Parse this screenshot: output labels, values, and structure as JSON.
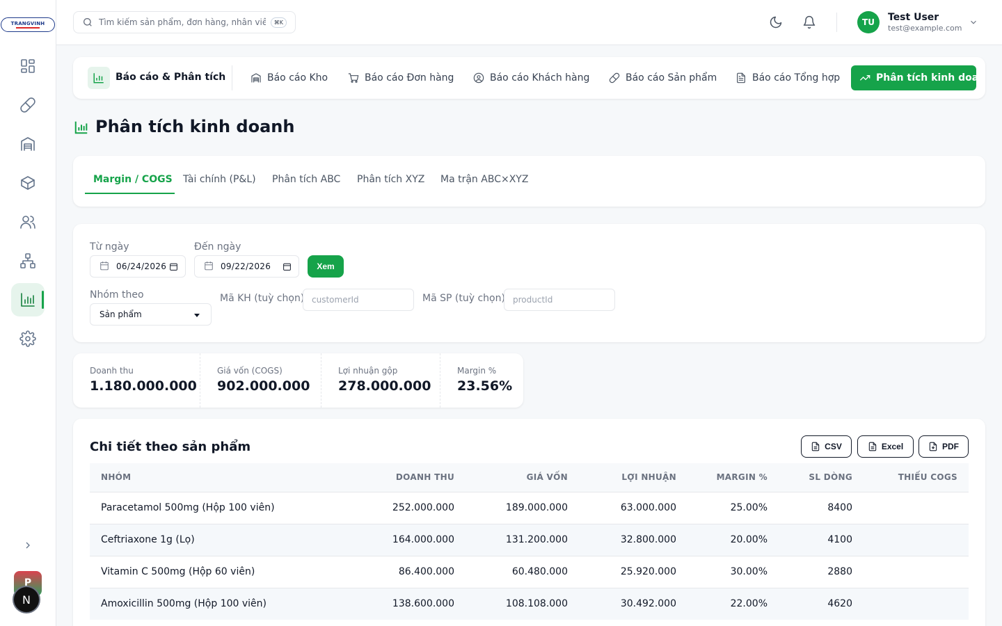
{
  "brand": {
    "logo_text": "TRANGVINH"
  },
  "sidebar": {
    "items": [
      {
        "name": "dashboard"
      },
      {
        "name": "products"
      },
      {
        "name": "warehouse"
      },
      {
        "name": "inventory"
      },
      {
        "name": "customers"
      },
      {
        "name": "organization"
      },
      {
        "name": "reports",
        "active": true
      },
      {
        "name": "settings"
      }
    ],
    "avatar_p": "P",
    "avatar_n": "N"
  },
  "header": {
    "search_placeholder": "Tìm kiếm sản phẩm, đơn hàng, nhân viên...",
    "shortcut": "⌘K",
    "user": {
      "initials": "TU",
      "name": "Test User",
      "email": "test@example.com"
    }
  },
  "report_nav": {
    "brand": "Báo cáo & Phân tích",
    "tabs": [
      {
        "label": "Báo cáo Kho",
        "icon": "warehouse-icon"
      },
      {
        "label": "Báo cáo Đơn hàng",
        "icon": "cart-icon"
      },
      {
        "label": "Báo cáo Khách hàng",
        "icon": "user-circle-icon"
      },
      {
        "label": "Báo cáo Sản phẩm",
        "icon": "pill-icon"
      },
      {
        "label": "Báo cáo Tổng hợp",
        "icon": "document-icon"
      }
    ],
    "active": "Phân tích kinh doanh"
  },
  "page": {
    "title": "Phân tích kinh doanh"
  },
  "subtabs": [
    "Margin / COGS",
    "Tài chính (P&L)",
    "Phân tích ABC",
    "Phân tích XYZ",
    "Ma trận ABC×XYZ"
  ],
  "filters": {
    "from_label": "Từ ngày",
    "from_value": "06/24/2026",
    "to_label": "Đến ngày",
    "to_value": "09/22/2026",
    "view_button": "Xem",
    "group_label": "Nhóm theo",
    "group_value": "Sản phẩm",
    "customer_label": "Mã KH (tuỳ chọn)",
    "customer_placeholder": "customerId",
    "product_label": "Mã SP (tuỳ chọn)",
    "product_placeholder": "productId"
  },
  "stats": [
    {
      "label": "Doanh thu",
      "value": "1.180.000.000"
    },
    {
      "label": "Giá vốn (COGS)",
      "value": "902.000.000"
    },
    {
      "label": "Lợi nhuận gộp",
      "value": "278.000.000"
    },
    {
      "label": "Margin %",
      "value": "23.56%"
    }
  ],
  "table": {
    "title": "Chi tiết theo sản phẩm",
    "export": [
      "CSV",
      "Excel",
      "PDF"
    ],
    "columns": [
      "NHÓM",
      "DOANH THU",
      "GIÁ VỐN",
      "LỢI NHUẬN",
      "MARGIN %",
      "SL DÒNG",
      "THIẾU COGS"
    ],
    "rows": [
      [
        "Paracetamol 500mg (Hộp 100 viên)",
        "252.000.000",
        "189.000.000",
        "63.000.000",
        "25.00%",
        "8400",
        ""
      ],
      [
        "Ceftriaxone 1g (Lọ)",
        "164.000.000",
        "131.200.000",
        "32.800.000",
        "20.00%",
        "4100",
        ""
      ],
      [
        "Vitamin C 500mg (Hộp 60 viên)",
        "86.400.000",
        "60.480.000",
        "25.920.000",
        "30.00%",
        "2880",
        ""
      ],
      [
        "Amoxicillin 500mg (Hộp 100 viên)",
        "138.600.000",
        "108.108.000",
        "30.492.000",
        "22.00%",
        "4620",
        ""
      ]
    ]
  },
  "colors": {
    "accent": "#16a34a",
    "accent_light": "#e6f4ec",
    "text": "#111827",
    "muted": "#6b7280"
  }
}
